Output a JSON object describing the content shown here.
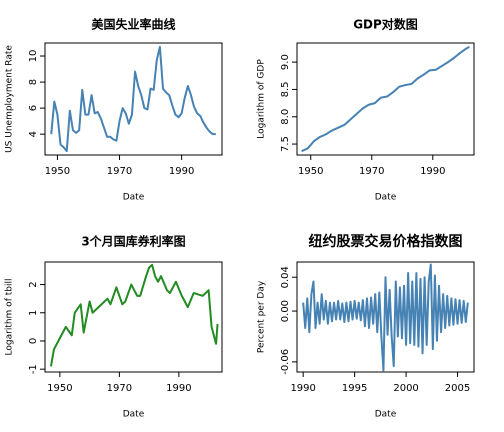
{
  "chart_data": [
    {
      "type": "line",
      "title": "美国失业率曲线",
      "x_label": "Date",
      "y_label": "US Unemployment Rate",
      "color": "#4682b4",
      "x": [
        1948,
        1949,
        1950,
        1951,
        1952,
        1953,
        1954,
        1955,
        1956,
        1957,
        1958,
        1959,
        1960,
        1961,
        1962,
        1963,
        1964,
        1965,
        1966,
        1967,
        1968,
        1969,
        1970,
        1971,
        1972,
        1973,
        1974,
        1975,
        1976,
        1977,
        1978,
        1979,
        1980,
        1981,
        1982,
        1983,
        1984,
        1985,
        1986,
        1987,
        1988,
        1989,
        1990,
        1991,
        1992,
        1993,
        1994,
        1995,
        1996,
        1997,
        1998,
        1999,
        2000,
        2001
      ],
      "values": [
        4,
        6.5,
        5.5,
        3.2,
        3,
        2.7,
        5.8,
        4.3,
        4.1,
        4.3,
        7.4,
        5.5,
        5.5,
        7,
        5.6,
        5.7,
        5.2,
        4.5,
        3.8,
        3.8,
        3.6,
        3.5,
        5,
        6,
        5.6,
        4.8,
        5.5,
        8.8,
        7.7,
        7,
        6,
        5.9,
        7.5,
        7.4,
        9.7,
        10.7,
        7.5,
        7.2,
        7,
        6.2,
        5.5,
        5.3,
        5.6,
        6.8,
        7.7,
        7,
        6.1,
        5.6,
        5.4,
        4.9,
        4.5,
        4.2,
        4,
        4
      ],
      "xlim": [
        1946,
        2003
      ],
      "ylim": [
        2.4,
        11
      ],
      "xticks": [
        1950,
        1970,
        1990
      ],
      "yticks": [
        4,
        6,
        8,
        10
      ]
    },
    {
      "type": "line",
      "title": "GDP对数图",
      "x_label": "Date",
      "y_label": "Logarithm of GDP",
      "color": "#4682b4",
      "x": [
        1947,
        1949,
        1951,
        1953,
        1955,
        1957,
        1959,
        1961,
        1963,
        1965,
        1967,
        1969,
        1971,
        1973,
        1975,
        1977,
        1979,
        1981,
        1983,
        1985,
        1987,
        1989,
        1991,
        1993,
        1995,
        1997,
        1999,
        2001,
        2002
      ],
      "values": [
        7.37,
        7.42,
        7.55,
        7.63,
        7.68,
        7.75,
        7.8,
        7.85,
        7.95,
        8.05,
        8.15,
        8.22,
        8.25,
        8.35,
        8.37,
        8.45,
        8.55,
        8.58,
        8.6,
        8.7,
        8.77,
        8.85,
        8.86,
        8.93,
        9,
        9.08,
        9.17,
        9.25,
        9.28
      ],
      "xlim": [
        1945.5,
        2003.5
      ],
      "ylim": [
        7.3,
        9.35
      ],
      "xticks": [
        1950,
        1970,
        1990
      ],
      "yticks": [
        7.5,
        {
          "value": 8,
          "label": "8.0"
        },
        8.5,
        {
          "value": 9,
          "label": "9.0"
        }
      ]
    },
    {
      "type": "line",
      "title": "3个月国库券利率图",
      "x_label": "Date",
      "y_label": "Logarithm of tbill",
      "color": "#228b22",
      "x": [
        1947,
        1948,
        1950,
        1952,
        1954,
        1955,
        1957,
        1958,
        1960,
        1961,
        1963,
        1966,
        1967,
        1969,
        1971,
        1972,
        1974,
        1976,
        1977,
        1979,
        1980,
        1981,
        1982,
        1983,
        1984,
        1986,
        1987,
        1989,
        1991,
        1993,
        1995,
        1998,
        2000,
        2001,
        2002.5,
        2003
      ],
      "values": [
        -0.9,
        -0.3,
        0.1,
        0.5,
        0.2,
        1,
        1.3,
        0.3,
        1.4,
        1,
        1.2,
        1.5,
        1.3,
        1.9,
        1.3,
        1.4,
        2,
        1.6,
        1.6,
        2.3,
        2.6,
        2.7,
        2.3,
        2.1,
        2.3,
        1.8,
        1.7,
        2.1,
        1.6,
        1.2,
        1.7,
        1.6,
        1.8,
        0.5,
        -0.1,
        0.6
      ],
      "xlim": [
        1945,
        2004.5
      ],
      "ylim": [
        -1.1,
        2.8
      ],
      "xticks": [
        1950,
        1970,
        1990
      ],
      "yticks": [
        -1,
        0,
        1,
        2
      ]
    },
    {
      "type": "line",
      "title": "纽约股票交易价格指数图",
      "x_label": "Date",
      "y_label": "Percent per Day",
      "color": "#4682b4",
      "x": [
        1990,
        1990.2,
        1990.4,
        1990.6,
        1990.8,
        1991,
        1991.2,
        1991.4,
        1991.6,
        1991.8,
        1992,
        1992.2,
        1992.4,
        1992.6,
        1992.8,
        1993,
        1993.2,
        1993.4,
        1993.6,
        1993.8,
        1994,
        1994.2,
        1994.4,
        1994.6,
        1994.8,
        1995,
        1995.2,
        1995.4,
        1995.6,
        1995.8,
        1996,
        1996.2,
        1996.4,
        1996.6,
        1996.8,
        1997,
        1997.2,
        1997.4,
        1997.6,
        1997.8,
        1998,
        1998.2,
        1998.4,
        1998.6,
        1998.8,
        1999,
        1999.2,
        1999.4,
        1999.6,
        1999.8,
        2000,
        2000.2,
        2000.4,
        2000.6,
        2000.8,
        2001,
        2001.2,
        2001.4,
        2001.6,
        2001.8,
        2002,
        2002.2,
        2002.4,
        2002.6,
        2002.8,
        2003,
        2003.2,
        2003.4,
        2003.6,
        2003.8,
        2004,
        2004.2,
        2004.4,
        2004.6,
        2004.8,
        2005,
        2005.2,
        2005.4,
        2005.6,
        2005.8,
        2006
      ],
      "values": [
        0.01,
        -0.02,
        0.015,
        -0.025,
        0.02,
        0.035,
        -0.02,
        0.01,
        -0.015,
        0.02,
        -0.01,
        0.012,
        -0.015,
        0.01,
        -0.012,
        0.01,
        -0.01,
        0.012,
        -0.01,
        0.009,
        -0.013,
        0.01,
        -0.012,
        0.011,
        -0.01,
        0.012,
        -0.009,
        0.01,
        -0.011,
        0.013,
        -0.018,
        0.015,
        -0.02,
        0.016,
        -0.015,
        0.02,
        -0.025,
        0.022,
        -0.03,
        -0.07,
        0.04,
        -0.028,
        0.025,
        -0.03,
        -0.065,
        0.035,
        -0.03,
        0.028,
        -0.032,
        0.03,
        -0.04,
        0.045,
        -0.038,
        0.035,
        -0.04,
        0.045,
        -0.042,
        0.038,
        -0.05,
        0.04,
        -0.04,
        0.035,
        0.055,
        -0.045,
        0.042,
        -0.035,
        0.03,
        -0.025,
        0.02,
        -0.02,
        0.018,
        -0.017,
        0.015,
        -0.016,
        0.014,
        -0.015,
        0.013,
        -0.014,
        0.012,
        -0.013,
        0.01
      ],
      "xlim": [
        1989.4,
        2006.6
      ],
      "ylim": [
        -0.072,
        0.058
      ],
      "xticks": [
        1990,
        1995,
        2000,
        2005
      ],
      "yticks": [
        -0.06,
        {
          "value": 0,
          "label": "0.00"
        },
        0.04
      ]
    }
  ]
}
